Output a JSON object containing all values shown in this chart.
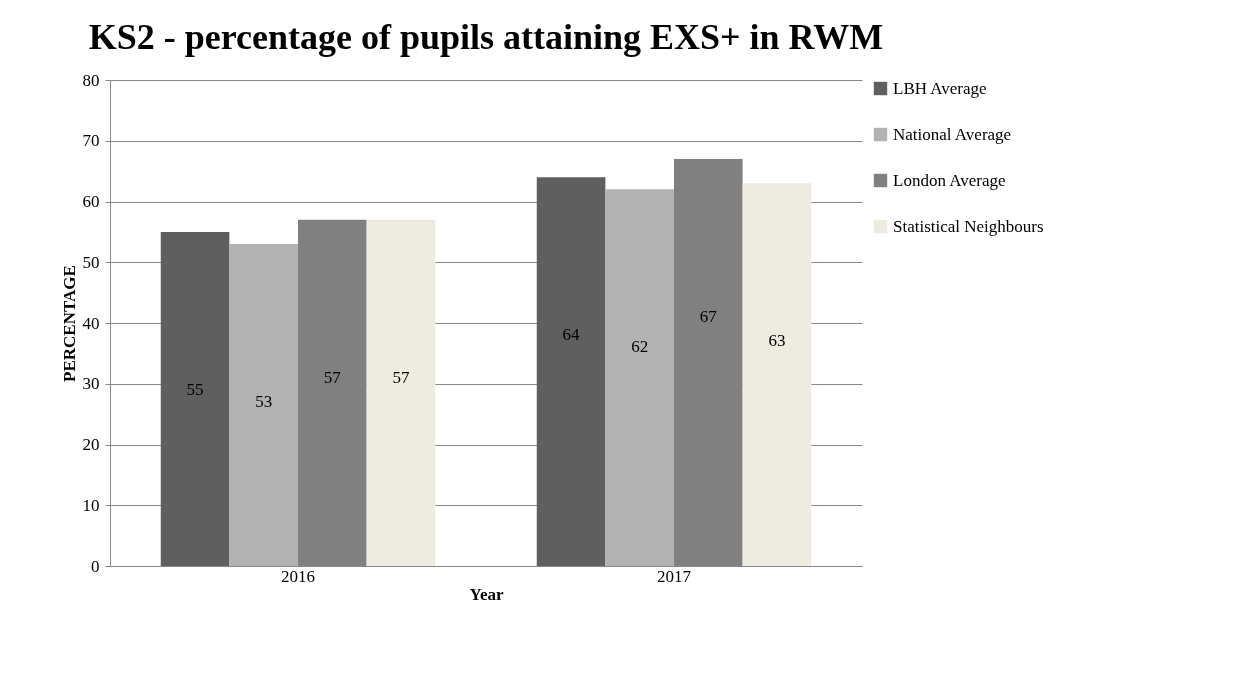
{
  "chart_data": {
    "type": "bar",
    "title": "KS2 - percentage of pupils attaining EXS+ in RWM",
    "xlabel": "Year",
    "ylabel": "PERCENTAGE",
    "categories": [
      "2016",
      "2017"
    ],
    "series": [
      {
        "name": "LBH Average",
        "color": "#5f5f5f",
        "values": [
          55,
          64
        ]
      },
      {
        "name": "National Average",
        "color": "#b2b2b2",
        "values": [
          53,
          62
        ]
      },
      {
        "name": "London Average",
        "color": "#808080",
        "values": [
          57,
          67
        ]
      },
      {
        "name": "Statistical Neighbours",
        "color": "#eeebe0",
        "values": [
          57,
          63
        ]
      }
    ],
    "ylim": [
      0,
      80
    ],
    "yticks": [
      0,
      10,
      20,
      30,
      40,
      50,
      60,
      70,
      80
    ],
    "grid": "y",
    "legend": "right",
    "data_labels": true
  }
}
